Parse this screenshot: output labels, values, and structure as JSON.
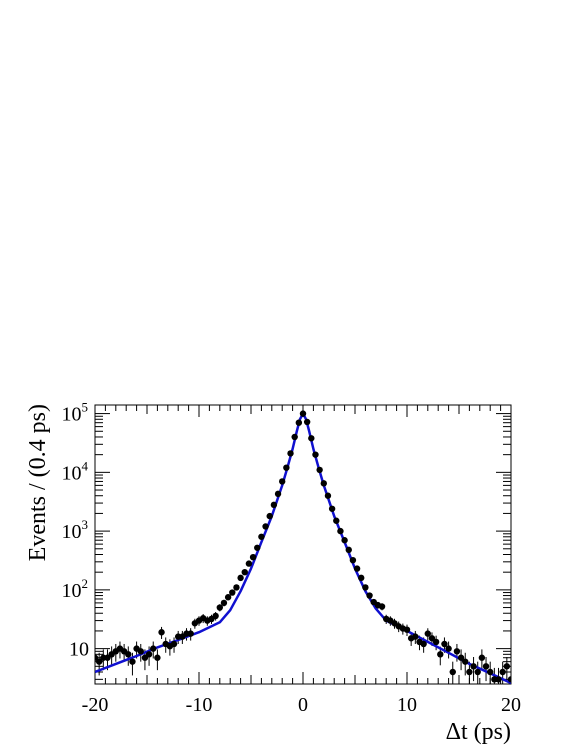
{
  "chart_data": {
    "type": "scatter",
    "title": "",
    "xlabel": "Δt (ps)",
    "ylabel": "Events / (0.4 ps)",
    "xlim": [
      -20,
      20
    ],
    "ylim": [
      2.5,
      140000
    ],
    "yscale": "log",
    "grid": false,
    "legend": "none",
    "x_ticks": [
      -20,
      -10,
      0,
      10,
      20
    ],
    "x_tick_labels": [
      "-20",
      "-10",
      "0",
      "10",
      "20"
    ],
    "y_ticks": [
      10,
      100,
      1000,
      10000,
      100000
    ],
    "y_tick_labels": [
      {
        "base": "10",
        "exp": ""
      },
      {
        "base": "10",
        "exp": "2"
      },
      {
        "base": "10",
        "exp": "3"
      },
      {
        "base": "10",
        "exp": "4"
      },
      {
        "base": "10",
        "exp": "5"
      }
    ],
    "series": [
      {
        "kind": "data-points-with-errors",
        "color": "#000000",
        "x": [
          -20.0,
          -19.6,
          -19.2,
          -18.8,
          -18.4,
          -18.0,
          -17.6,
          -17.2,
          -16.8,
          -16.4,
          -16.0,
          -15.6,
          -15.2,
          -14.8,
          -14.4,
          -14.0,
          -13.6,
          -13.2,
          -12.8,
          -12.4,
          -12.0,
          -11.6,
          -11.2,
          -10.8,
          -10.4,
          -10.0,
          -9.6,
          -9.2,
          -8.8,
          -8.4,
          -8.0,
          -7.6,
          -7.2,
          -6.8,
          -6.4,
          -6.0,
          -5.6,
          -5.2,
          -4.8,
          -4.4,
          -4.0,
          -3.6,
          -3.2,
          -2.8,
          -2.4,
          -2.0,
          -1.6,
          -1.2,
          -0.8,
          -0.4,
          0.0,
          0.4,
          0.8,
          1.2,
          1.6,
          2.0,
          2.4,
          2.8,
          3.2,
          3.6,
          4.0,
          4.4,
          4.8,
          5.2,
          5.6,
          6.0,
          6.4,
          6.8,
          7.2,
          7.6,
          8.0,
          8.4,
          8.8,
          9.2,
          9.6,
          10.0,
          10.4,
          10.8,
          11.2,
          11.6,
          12.0,
          12.4,
          12.8,
          13.2,
          13.6,
          14.0,
          14.4,
          14.8,
          15.2,
          15.6,
          16.0,
          16.4,
          16.8,
          17.2,
          17.6,
          18.0,
          18.4,
          18.8,
          19.2,
          19.6,
          20.0
        ],
        "y": [
          7,
          6,
          7,
          7,
          8,
          9,
          10,
          9,
          8,
          6,
          10,
          9,
          7,
          8,
          10,
          7,
          19,
          12,
          11,
          12,
          16,
          16,
          18,
          18,
          27,
          30,
          33,
          30,
          32,
          36,
          50,
          60,
          75,
          90,
          110,
          160,
          200,
          280,
          360,
          520,
          800,
          1200,
          1800,
          2800,
          4300,
          7000,
          12000,
          21000,
          40000,
          70000,
          100000,
          72000,
          38000,
          20000,
          11000,
          6500,
          4000,
          2400,
          1500,
          1000,
          700,
          480,
          320,
          230,
          160,
          110,
          80,
          62,
          55,
          52,
          32,
          30,
          27,
          24,
          22,
          21,
          15,
          16,
          13,
          12,
          18,
          15,
          13,
          8,
          12,
          10,
          4,
          9,
          7,
          6,
          4,
          5,
          4,
          7,
          5,
          4,
          3,
          3,
          4,
          5,
          3
        ],
        "yerr": [
          3,
          2.5,
          2.7,
          2.7,
          2.9,
          3,
          3.2,
          3,
          2.9,
          2.5,
          3.2,
          3,
          2.7,
          2.9,
          3.2,
          2.7,
          4.4,
          3.5,
          3.4,
          3.5,
          4,
          4,
          4.3,
          4.3,
          5.2,
          5.5,
          5.8,
          5.5,
          5.7,
          6,
          7,
          7.7,
          8.7,
          9.5,
          10.5,
          12.7,
          14.1,
          16.7,
          19,
          22.8,
          28.3,
          34.6,
          42.4,
          52.9,
          65.6,
          83.7,
          109.5,
          144.9,
          200,
          264.6,
          316.2,
          268.3,
          194.9,
          141.4,
          104.9,
          80.6,
          63.2,
          49,
          38.7,
          31.6,
          26.5,
          21.9,
          17.9,
          15.2,
          12.7,
          10.5,
          8.9,
          7.9,
          7.4,
          7.2,
          5.7,
          5.5,
          5.2,
          4.9,
          4.7,
          4.6,
          3.9,
          4,
          3.6,
          3.5,
          4.2,
          3.9,
          3.6,
          2.8,
          3.5,
          3.2,
          2,
          3,
          2.7,
          2.5,
          2,
          2.2,
          2,
          2.7,
          2.2,
          2,
          1.7,
          1.7,
          2,
          2.2,
          1.7
        ]
      },
      {
        "kind": "fit-curve",
        "color": "#1010d0",
        "x": [
          -20,
          -18,
          -16,
          -14,
          -12,
          -10,
          -8,
          -7,
          -6,
          -5,
          -4,
          -3,
          -2,
          -1.5,
          -1,
          -0.6,
          -0.3,
          0,
          0.3,
          0.6,
          1,
          1.5,
          2,
          3,
          4,
          5,
          6,
          7,
          8,
          10,
          12,
          14,
          16,
          18,
          20
        ],
        "y": [
          4,
          5.5,
          7.5,
          10.5,
          14,
          19,
          28,
          45,
          95,
          230,
          650,
          1800,
          6000,
          12000,
          25000,
          50000,
          80000,
          100000,
          80000,
          50000,
          25000,
          12000,
          6000,
          1800,
          650,
          230,
          95,
          48,
          30,
          20,
          13,
          8.5,
          5.5,
          3.8,
          2.6
        ]
      }
    ]
  }
}
